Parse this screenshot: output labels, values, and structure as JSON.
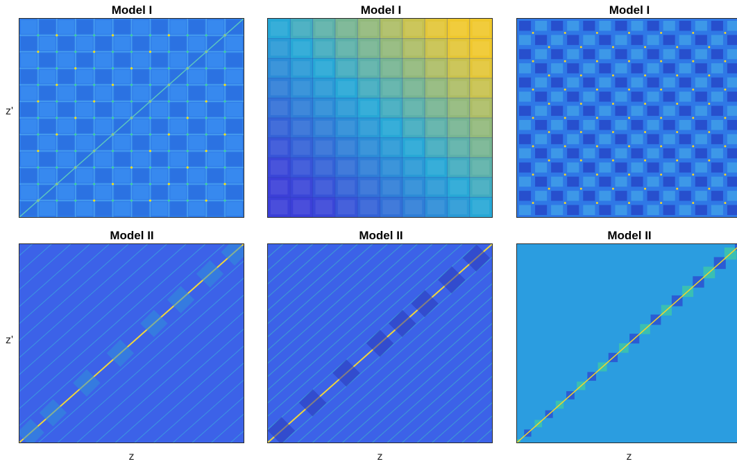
{
  "chart_data": [
    {
      "type": "heatmap",
      "title": "Model I",
      "xlabel": "",
      "ylabel": "z'",
      "pattern": "grid-blue",
      "colormap": "parula"
    },
    {
      "type": "heatmap",
      "title": "Model I",
      "xlabel": "",
      "ylabel": "",
      "pattern": "grid-gradient",
      "colormap": "parula"
    },
    {
      "type": "heatmap",
      "title": "Model I",
      "xlabel": "",
      "ylabel": "",
      "pattern": "grid-dense",
      "colormap": "parula"
    },
    {
      "type": "heatmap",
      "title": "Model II",
      "xlabel": "z",
      "ylabel": "z'",
      "pattern": "diagonal-sparse",
      "colormap": "parula"
    },
    {
      "type": "heatmap",
      "title": "Model II",
      "xlabel": "z",
      "ylabel": "",
      "pattern": "diagonal-dense",
      "colormap": "parula"
    },
    {
      "type": "heatmap",
      "title": "Model II",
      "xlabel": "z",
      "ylabel": "",
      "pattern": "diagonal-blocks",
      "colormap": "parula"
    }
  ]
}
